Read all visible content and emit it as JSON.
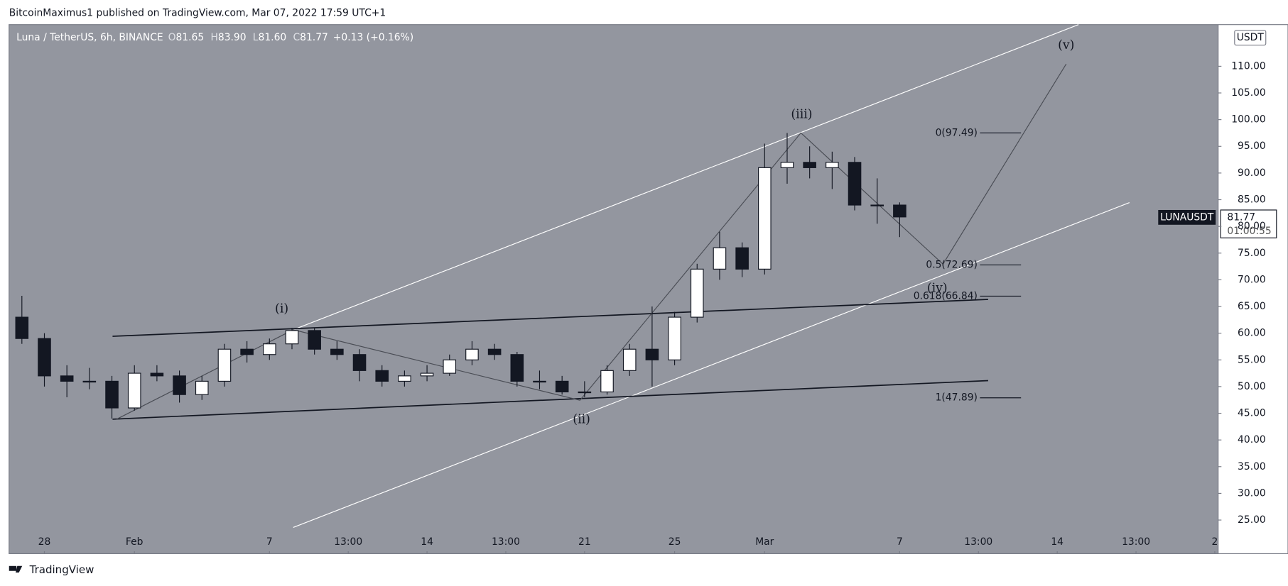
{
  "header": {
    "publisher": "BitcoinMaximus1 published on TradingView.com, Mar 07, 2022 17:59 UTC+1"
  },
  "legend": {
    "symbol": "Luna / TetherUS, 6h, BINANCE",
    "ohlc": [
      {
        "key": "O",
        "value": "81.65"
      },
      {
        "key": "H",
        "value": "83.90"
      },
      {
        "key": "L",
        "value": "81.60"
      },
      {
        "key": "C",
        "value": "81.77"
      }
    ],
    "change": "+0.13 (+0.16%)"
  },
  "price_tag": {
    "symbol": "LUNAUSDT",
    "price": "81.77",
    "countdown": "01:00:55"
  },
  "currency": "USDT",
  "footer": {
    "brand": "TradingView"
  },
  "chart_data": {
    "type": "candlestick",
    "x": [
      -1,
      0,
      1,
      2,
      3,
      4,
      5,
      6,
      7,
      8,
      9,
      10,
      11,
      12,
      13,
      14,
      15,
      16,
      17,
      18,
      19,
      20,
      21,
      22,
      23,
      24,
      25,
      26,
      27,
      28,
      29,
      30,
      31,
      32,
      33,
      34,
      35,
      36,
      37,
      38
    ],
    "open": [
      63,
      59,
      52,
      51,
      51,
      46,
      52.5,
      52,
      48.5,
      51,
      57,
      56,
      58,
      60.5,
      57,
      56,
      53,
      51,
      52,
      52.5,
      55,
      57,
      56,
      51,
      51,
      49,
      49,
      53,
      57,
      55,
      63,
      72,
      76,
      72,
      91,
      92,
      91,
      92,
      84,
      84
    ],
    "high": [
      67,
      60,
      54,
      53.5,
      52,
      54,
      54,
      53,
      52,
      58,
      58.5,
      59,
      61,
      61,
      58.5,
      57,
      54,
      53,
      54,
      56,
      58.5,
      58,
      56.5,
      53,
      52,
      51,
      54,
      58,
      65,
      64,
      73,
      79,
      77,
      95.5,
      97.5,
      95,
      94,
      93,
      89,
      84.5
    ],
    "low": [
      58,
      50,
      48,
      49.5,
      44,
      45.5,
      51,
      47,
      47.5,
      50,
      54.5,
      55,
      57,
      56,
      55,
      51,
      50,
      50,
      51,
      52,
      54,
      55,
      50,
      49.5,
      48.5,
      48,
      48.5,
      52,
      50,
      54,
      62,
      70,
      70.5,
      71,
      88,
      89,
      87,
      83,
      80.5,
      78
    ],
    "close": [
      59,
      52,
      51,
      51,
      46,
      52.5,
      52,
      48.5,
      51,
      57,
      56,
      58,
      60.5,
      57,
      56,
      53,
      51,
      52,
      52.5,
      55,
      57,
      56,
      51,
      51,
      49,
      49,
      53,
      57,
      55,
      63,
      72,
      76,
      72,
      91,
      92,
      91,
      92,
      84,
      84,
      81.77
    ],
    "xlim": [
      -1.57,
      52.15
    ],
    "xticks": [
      {
        "value": 0,
        "label": "28"
      },
      {
        "value": 4,
        "label": "Feb"
      },
      {
        "value": 10,
        "label": "7"
      },
      {
        "value": 13.5,
        "label": "13:00"
      },
      {
        "value": 17,
        "label": "14"
      },
      {
        "value": 20.5,
        "label": "13:00"
      },
      {
        "value": 24,
        "label": "21"
      },
      {
        "value": 28,
        "label": "25"
      },
      {
        "value": 32,
        "label": "Mar"
      },
      {
        "value": 38,
        "label": "7"
      },
      {
        "value": 41.5,
        "label": "13:00"
      },
      {
        "value": 45,
        "label": "14"
      },
      {
        "value": 48.5,
        "label": "13:00"
      },
      {
        "value": 52,
        "label": "2"
      }
    ],
    "ylim": [
      18.7,
      117.8
    ],
    "yticks": [
      {
        "value": 25,
        "label": "25.00"
      },
      {
        "value": 30,
        "label": "30.00"
      },
      {
        "value": 35,
        "label": "35.00"
      },
      {
        "value": 40,
        "label": "40.00"
      },
      {
        "value": 45,
        "label": "45.00"
      },
      {
        "value": 50,
        "label": "50.00"
      },
      {
        "value": 55,
        "label": "55.00"
      },
      {
        "value": 60,
        "label": "60.00"
      },
      {
        "value": 65,
        "label": "65.00"
      },
      {
        "value": 70,
        "label": "70.00"
      },
      {
        "value": 75,
        "label": "75.00"
      },
      {
        "value": 80,
        "label": "80.00"
      },
      {
        "value": 85,
        "label": "85.00"
      },
      {
        "value": 90,
        "label": "90.00"
      },
      {
        "value": 95,
        "label": "95.00"
      },
      {
        "value": 100,
        "label": "100.00"
      },
      {
        "value": 105,
        "label": "105.00"
      },
      {
        "value": 110,
        "label": "110.00"
      }
    ],
    "up_color": "#ffffff",
    "down_color": "#131722",
    "wave_labels": [
      "(i)",
      "(ii)",
      "(iii)",
      "(iv)",
      "(v)"
    ],
    "fib_labels": [
      "0(97.49)",
      "0.5(72.69)",
      "0.618(66.84)",
      "1(47.89)"
    ]
  }
}
